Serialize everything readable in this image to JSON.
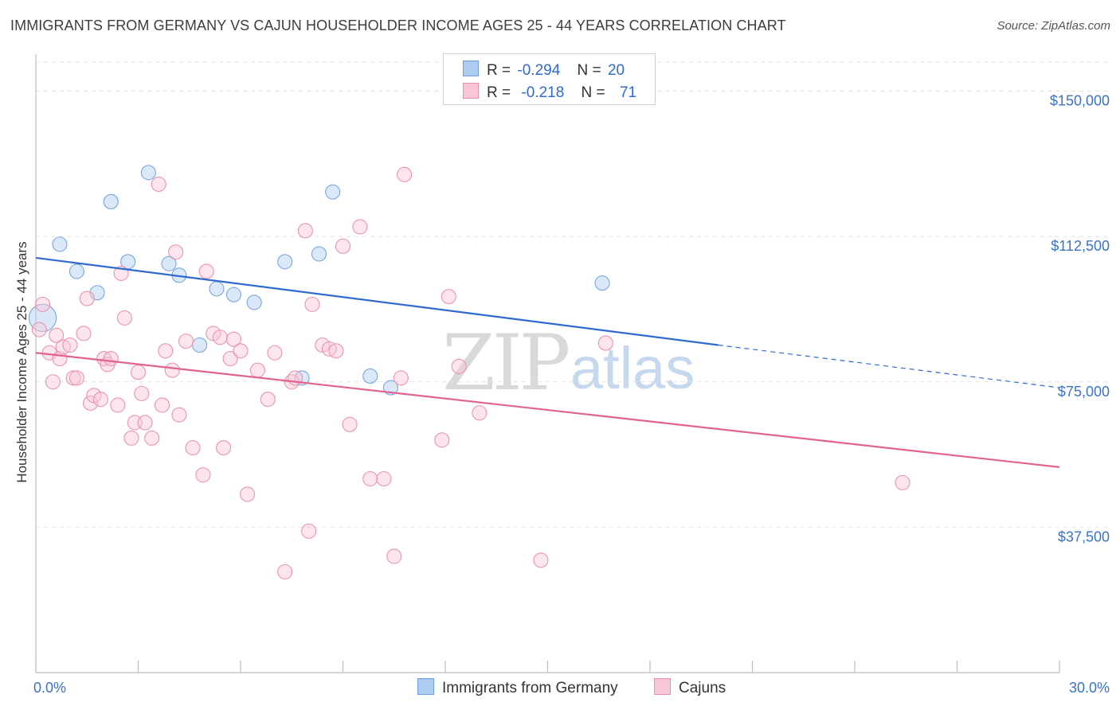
{
  "title": "IMMIGRANTS FROM GERMANY VS CAJUN HOUSEHOLDER INCOME AGES 25 - 44 YEARS CORRELATION CHART",
  "source": "Source: ZipAtlas.com",
  "watermark": {
    "part1": "ZIP",
    "part2": "atlas"
  },
  "legend": [
    {
      "r_label": "R =",
      "r_value": "-0.294",
      "n_label": "N =",
      "n_value": "20",
      "color": "#aecbf0",
      "border": "#6f9fde"
    },
    {
      "r_label": "R =",
      "r_value": "-0.218",
      "n_label": "N =",
      "n_value": "71",
      "color": "#f8c6d6",
      "border": "#e98fae"
    }
  ],
  "bottom_legend": [
    "Immigrants from Germany",
    "Cajuns"
  ],
  "colors": {
    "blue": "#2f6ad0",
    "pink": "#e0648f",
    "axis_label": "#3b73c8"
  },
  "chart_data": {
    "type": "scatter",
    "xlabel": "",
    "ylabel": "Householder Income Ages 25 - 44 years",
    "xlim": [
      0,
      30
    ],
    "ylim": [
      0,
      157500
    ],
    "x_tick_labels": [
      "0.0%",
      "30.0%"
    ],
    "y_ticks": [
      37500,
      75000,
      112500,
      150000
    ],
    "y_tick_labels": [
      "$37,500",
      "$75,000",
      "$112,500",
      "$150,000"
    ],
    "grid": true,
    "legend_position": "top-center",
    "series": [
      {
        "name": "Immigrants from Germany",
        "color": "#aecbf0",
        "points": [
          [
            0.2,
            91500,
            1.9
          ],
          [
            0.7,
            110500,
            1
          ],
          [
            1.2,
            103500,
            1
          ],
          [
            1.8,
            98000,
            1
          ],
          [
            2.2,
            121500,
            1
          ],
          [
            2.7,
            106000,
            1
          ],
          [
            3.3,
            129000,
            1
          ],
          [
            3.9,
            105500,
            1
          ],
          [
            4.2,
            102500,
            1
          ],
          [
            4.8,
            84500,
            1
          ],
          [
            5.3,
            99000,
            1
          ],
          [
            5.8,
            97500,
            1
          ],
          [
            6.4,
            95500,
            1
          ],
          [
            7.3,
            106000,
            1
          ],
          [
            7.8,
            76000,
            1
          ],
          [
            8.3,
            108000,
            1
          ],
          [
            8.7,
            124000,
            1
          ],
          [
            9.8,
            76500,
            1
          ],
          [
            10.4,
            73500,
            1
          ],
          [
            16.6,
            100500,
            1
          ]
        ],
        "trend": {
          "x1": 0,
          "y1": 107000,
          "x2": 20,
          "y2": 84500,
          "x_dash_end": 30,
          "y_dash_end": 73500
        }
      },
      {
        "name": "Cajuns",
        "color": "#f8c6d6",
        "points": [
          [
            0.1,
            88500,
            1
          ],
          [
            0.2,
            95000,
            1
          ],
          [
            0.4,
            82500,
            1
          ],
          [
            0.5,
            75000,
            1
          ],
          [
            0.6,
            87000,
            1
          ],
          [
            0.7,
            81000,
            1
          ],
          [
            0.8,
            84000,
            1
          ],
          [
            1.0,
            84500,
            1
          ],
          [
            1.1,
            76000,
            1
          ],
          [
            1.2,
            76000,
            1
          ],
          [
            1.4,
            87500,
            1
          ],
          [
            1.5,
            96500,
            1
          ],
          [
            1.6,
            69500,
            1
          ],
          [
            1.7,
            71500,
            1
          ],
          [
            1.9,
            70500,
            1
          ],
          [
            2.0,
            81000,
            1
          ],
          [
            2.1,
            79500,
            1
          ],
          [
            2.2,
            81000,
            1
          ],
          [
            2.4,
            69000,
            1
          ],
          [
            2.5,
            103000,
            1
          ],
          [
            2.6,
            91500,
            1
          ],
          [
            2.8,
            60500,
            1
          ],
          [
            2.9,
            64500,
            1
          ],
          [
            3.0,
            77500,
            1
          ],
          [
            3.1,
            72000,
            1
          ],
          [
            3.2,
            64500,
            1
          ],
          [
            3.4,
            60500,
            1
          ],
          [
            3.6,
            126000,
            1
          ],
          [
            3.7,
            69000,
            1
          ],
          [
            3.8,
            83000,
            1
          ],
          [
            4.0,
            78000,
            1
          ],
          [
            4.1,
            108500,
            1
          ],
          [
            4.2,
            66500,
            1
          ],
          [
            4.4,
            85500,
            1
          ],
          [
            4.6,
            58000,
            1
          ],
          [
            4.9,
            51000,
            1
          ],
          [
            5.0,
            103500,
            1
          ],
          [
            5.2,
            87500,
            1
          ],
          [
            5.4,
            86500,
            1
          ],
          [
            5.5,
            58000,
            1
          ],
          [
            5.7,
            81000,
            1
          ],
          [
            5.8,
            86000,
            1
          ],
          [
            6.0,
            83000,
            1
          ],
          [
            6.2,
            46000,
            1
          ],
          [
            6.5,
            78000,
            1
          ],
          [
            6.8,
            70500,
            1
          ],
          [
            7.0,
            82500,
            1
          ],
          [
            7.3,
            26000,
            1
          ],
          [
            7.5,
            75000,
            1
          ],
          [
            7.6,
            76000,
            1
          ],
          [
            7.9,
            114000,
            1
          ],
          [
            8.0,
            36500,
            1
          ],
          [
            8.1,
            95000,
            1
          ],
          [
            8.4,
            84500,
            1
          ],
          [
            8.6,
            83500,
            1
          ],
          [
            8.8,
            83000,
            1
          ],
          [
            9.0,
            110000,
            1
          ],
          [
            9.5,
            115000,
            1
          ],
          [
            9.2,
            64000,
            1
          ],
          [
            9.8,
            50000,
            1
          ],
          [
            10.2,
            50000,
            1
          ],
          [
            10.5,
            30000,
            1
          ],
          [
            10.7,
            76000,
            1
          ],
          [
            10.8,
            128500,
            1
          ],
          [
            11.9,
            60000,
            1
          ],
          [
            12.1,
            97000,
            1
          ],
          [
            12.4,
            79000,
            1
          ],
          [
            13.0,
            67000,
            1
          ],
          [
            14.8,
            29000,
            1
          ],
          [
            16.7,
            85000,
            1
          ],
          [
            25.4,
            49000,
            1
          ]
        ],
        "trend": {
          "x1": 0,
          "y1": 82500,
          "x2": 30,
          "y2": 53000
        }
      }
    ]
  }
}
